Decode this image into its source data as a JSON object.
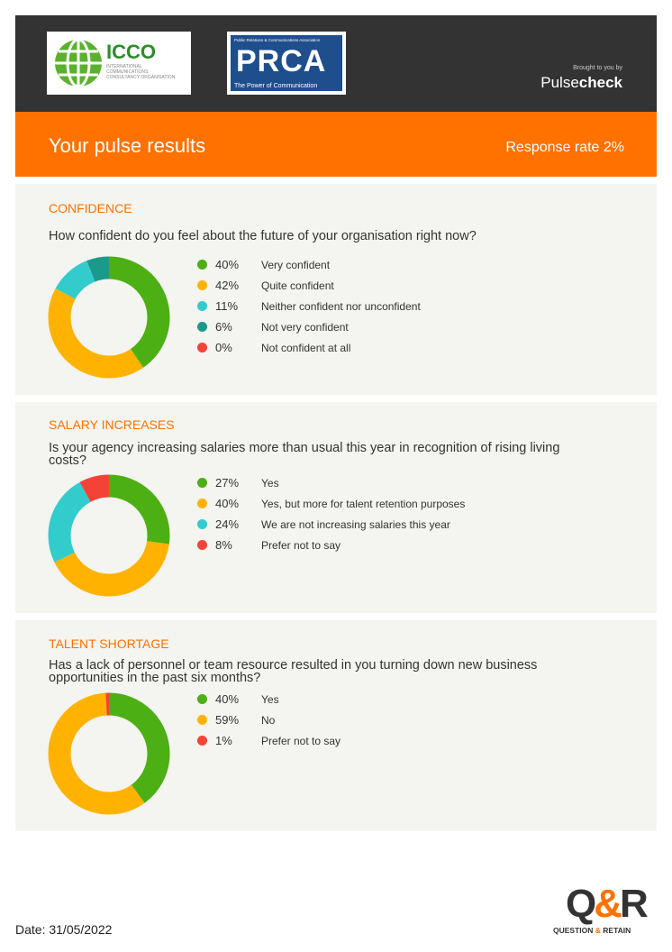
{
  "header": {
    "icco": {
      "name": "ICCO",
      "sub": "INTERNATIONAL COMMUNICATIONS CONSULTANCY ORGANISATION"
    },
    "prca": {
      "top": "Public Relations & Communications Association",
      "name": "PRCA",
      "tagline": "The Power of Communication"
    },
    "brought_by": "Brought to you by",
    "brand_pre": "Pulse",
    "brand_post": "check"
  },
  "banner": {
    "title": "Your pulse results",
    "response_rate": "Response rate 2%"
  },
  "sections": [
    {
      "title": "CONFIDENCE",
      "question": "How confident do you feel about the future of your organisation right now?",
      "items": [
        {
          "pct": "40%",
          "value": 40,
          "label": "Very confident",
          "color": "#4caf13"
        },
        {
          "pct": "42%",
          "value": 42,
          "label": "Quite confident",
          "color": "#ffb300"
        },
        {
          "pct": "11%",
          "value": 11,
          "label": "Neither confident nor unconfident",
          "color": "#33cccc"
        },
        {
          "pct": "6%",
          "value": 6,
          "label": "Not very confident",
          "color": "#1a9a8a"
        },
        {
          "pct": "0%",
          "value": 0,
          "label": "Not confident at all",
          "color": "#f44336"
        }
      ]
    },
    {
      "title": "SALARY INCREASES",
      "question": "Is your agency increasing salaries more than usual this year in recognition of rising living costs?",
      "items": [
        {
          "pct": "27%",
          "value": 27,
          "label": "Yes",
          "color": "#4caf13"
        },
        {
          "pct": "40%",
          "value": 40,
          "label": "Yes, but more for talent retention purposes",
          "color": "#ffb300"
        },
        {
          "pct": "24%",
          "value": 24,
          "label": "We are not increasing salaries this year",
          "color": "#33cccc"
        },
        {
          "pct": "8%",
          "value": 8,
          "label": "Prefer not to say",
          "color": "#f44336"
        }
      ]
    },
    {
      "title": "TALENT SHORTAGE",
      "question": "Has a lack of personnel or team resource resulted in you turning down new business opportunities in the past six months?",
      "items": [
        {
          "pct": "40%",
          "value": 40,
          "label": "Yes",
          "color": "#4caf13"
        },
        {
          "pct": "59%",
          "value": 59,
          "label": "No",
          "color": "#ffb300"
        },
        {
          "pct": "1%",
          "value": 1,
          "label": "Prefer not to say",
          "color": "#f44336"
        }
      ]
    }
  ],
  "chart_data": [
    {
      "type": "pie",
      "title": "CONFIDENCE",
      "categories": [
        "Very confident",
        "Quite confident",
        "Neither confident nor unconfident",
        "Not very confident",
        "Not confident at all"
      ],
      "values": [
        40,
        42,
        11,
        6,
        0
      ]
    },
    {
      "type": "pie",
      "title": "SALARY INCREASES",
      "categories": [
        "Yes",
        "Yes, but more for talent retention purposes",
        "We are not increasing salaries this year",
        "Prefer not to say"
      ],
      "values": [
        27,
        40,
        24,
        8
      ]
    },
    {
      "type": "pie",
      "title": "TALENT SHORTAGE",
      "categories": [
        "Yes",
        "No",
        "Prefer not to say"
      ],
      "values": [
        40,
        59,
        1
      ]
    }
  ],
  "footer": {
    "qr_q": "Q",
    "qr_amp": "&",
    "qr_r": "R",
    "qr_sub_a": "QUESTION",
    "qr_sub_amp": "&",
    "qr_sub_b": "RETAIN",
    "date": "Date: 31/05/2022"
  }
}
